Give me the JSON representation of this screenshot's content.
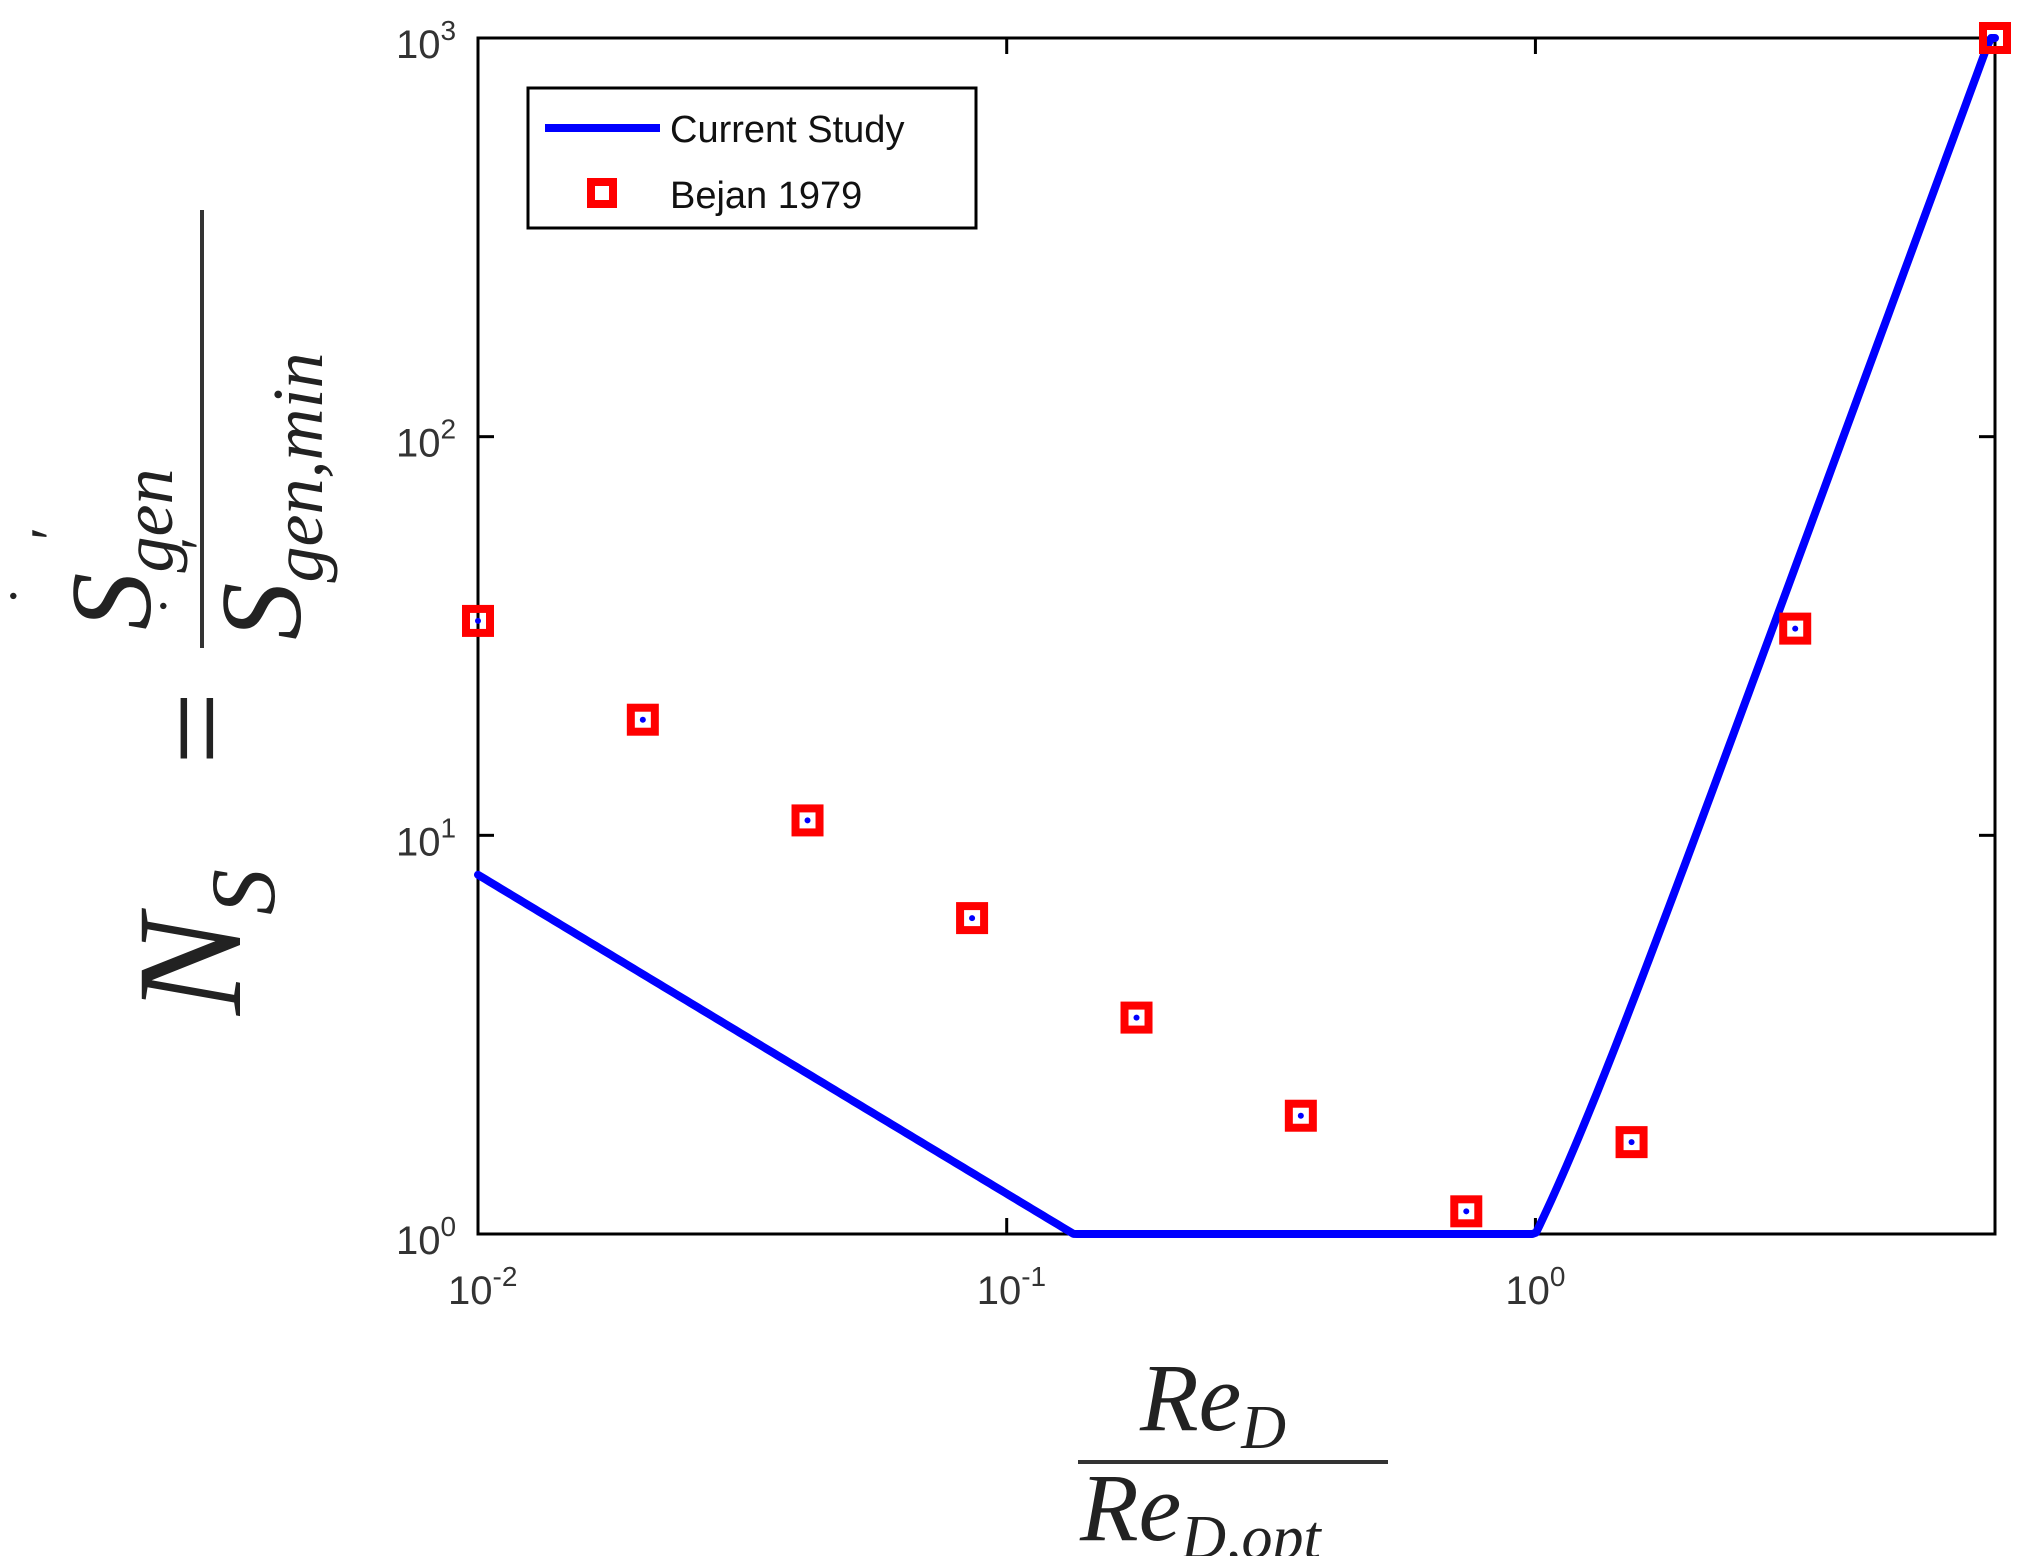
{
  "chart_data": {
    "type": "line",
    "xscale": "log",
    "yscale": "log",
    "xlim": [
      0.01,
      7.4
    ],
    "ylim": [
      1,
      1000
    ],
    "grid": false,
    "legend_position": "top-left",
    "x_ticks": [
      {
        "value": 0.01,
        "base": "10",
        "exp": "-2"
      },
      {
        "value": 0.1,
        "base": "10",
        "exp": "-1"
      },
      {
        "value": 1,
        "base": "10",
        "exp": "0"
      }
    ],
    "y_ticks": [
      {
        "value": 1,
        "base": "10",
        "exp": "0"
      },
      {
        "value": 10,
        "base": "10",
        "exp": "1"
      },
      {
        "value": 100,
        "base": "10",
        "exp": "2"
      },
      {
        "value": 1000,
        "base": "10",
        "exp": "3"
      }
    ],
    "xlabel": {
      "numerator_base": "Re",
      "numerator_sub": "D",
      "denominator_base": "Re",
      "denominator_sub": "D,opt"
    },
    "ylabel": {
      "lhs_base": "N",
      "lhs_sub": "S",
      "eq": "=",
      "numerator_base": "S",
      "numerator_sub": "gen",
      "denominator_base": "S",
      "denominator_sub": "gen,min"
    },
    "series": [
      {
        "name": "Current Study",
        "kind": "line",
        "color": "#0000ff",
        "formula": "N_S = 0.2*x^(-0.8) + 0.8*x^(3.6)",
        "x_range": [
          0.01,
          7.4
        ]
      },
      {
        "name": "Bejan 1979",
        "kind": "markers",
        "color": "#ff0000",
        "marker": "square",
        "x": [
          0.01,
          0.0205,
          0.042,
          0.086,
          0.176,
          0.36,
          0.74,
          1.52,
          3.1,
          7.4
        ],
        "y": [
          34.5,
          19.5,
          10.9,
          6.2,
          3.49,
          1.98,
          1.14,
          1.7,
          33,
          1000
        ]
      }
    ]
  }
}
